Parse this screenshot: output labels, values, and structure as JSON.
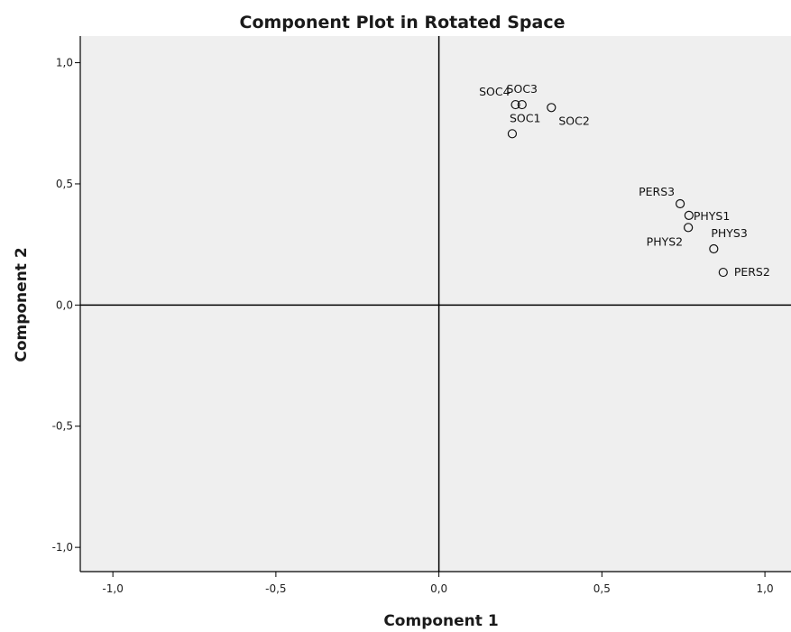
{
  "chart_data": {
    "type": "scatter",
    "title": "Component Plot in Rotated Space",
    "xlabel": "Component 1",
    "ylabel": "Component 2",
    "xlim": [
      -1.1,
      1.08
    ],
    "ylim": [
      -1.1,
      1.11
    ],
    "x_ticks": [
      -1.0,
      -0.5,
      0.0,
      0.5,
      1.0
    ],
    "x_tick_labels": [
      "-1,0",
      "-0,5",
      "0,0",
      "0,5",
      "1,0"
    ],
    "y_ticks": [
      1.0,
      0.5,
      0.0,
      -0.5,
      -1.0
    ],
    "y_tick_labels": [
      "1,0",
      "0,5",
      "0,0",
      "-0,5",
      "-1,0"
    ],
    "reference_lines": {
      "x": 0,
      "y": 0
    },
    "grid": false,
    "points": [
      {
        "label": "SOC4",
        "x": 0.235,
        "y": 0.827
      },
      {
        "label": "SOC3",
        "x": 0.255,
        "y": 0.827
      },
      {
        "label": "SOC2",
        "x": 0.345,
        "y": 0.815
      },
      {
        "label": "SOC1",
        "x": 0.225,
        "y": 0.707
      },
      {
        "label": "PERS3",
        "x": 0.74,
        "y": 0.418
      },
      {
        "label": "PHYS1",
        "x": 0.767,
        "y": 0.37
      },
      {
        "label": "PHYS2",
        "x": 0.765,
        "y": 0.32
      },
      {
        "label": "PHYS3",
        "x": 0.843,
        "y": 0.232
      },
      {
        "label": "PERS2",
        "x": 0.872,
        "y": 0.135
      }
    ],
    "colors": {
      "plot_background": "#efefef",
      "marker": "#111111",
      "axis": "#000000"
    }
  }
}
